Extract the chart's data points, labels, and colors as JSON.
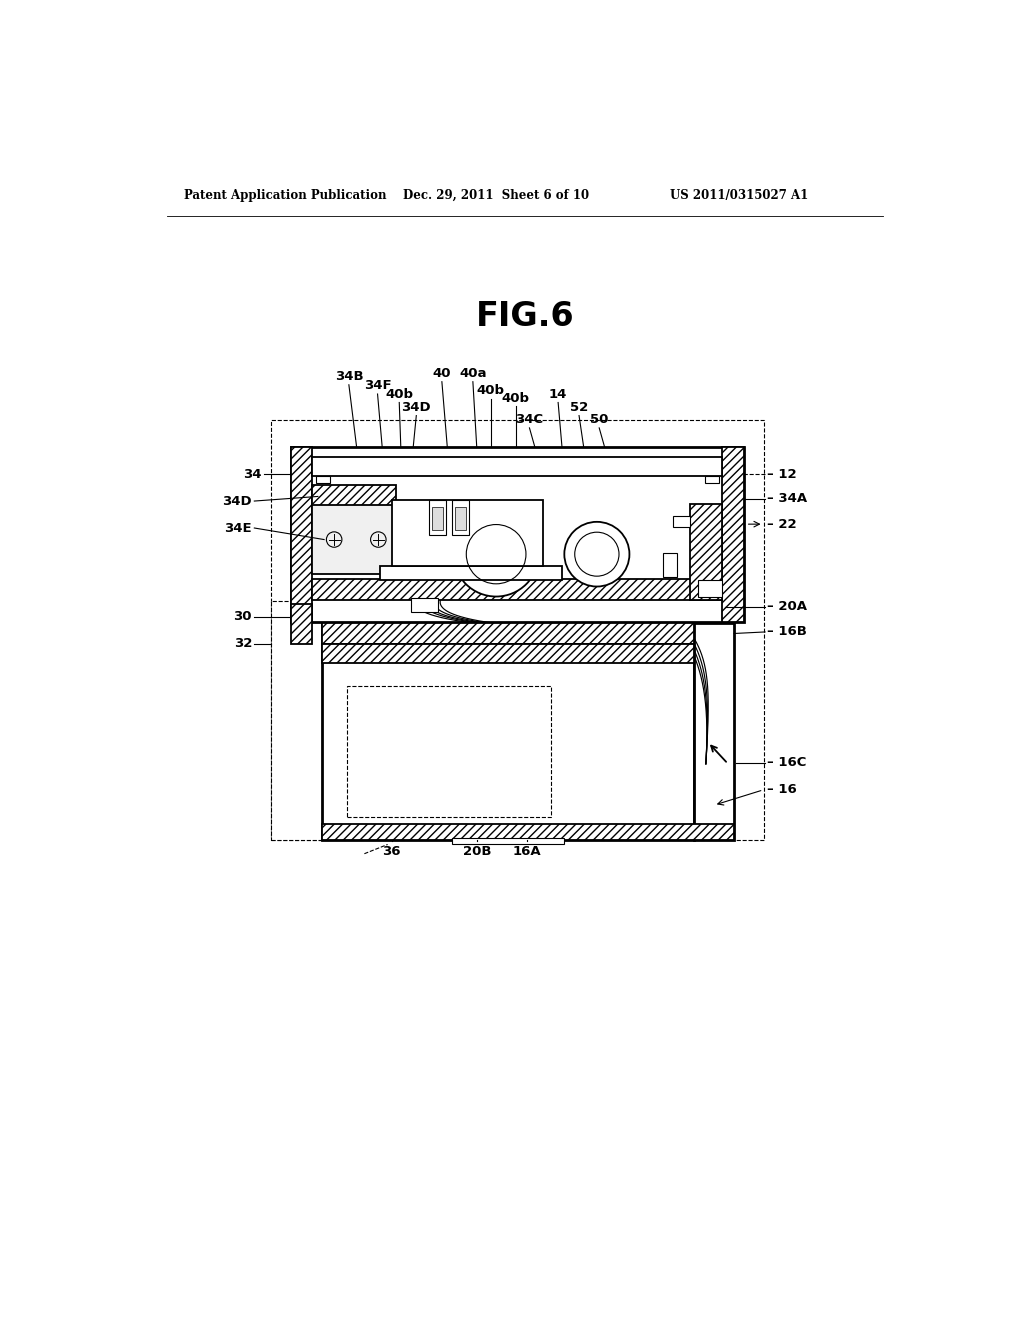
{
  "background_color": "#ffffff",
  "title": "FIG.6",
  "header_left": "Patent Application Publication",
  "header_center": "Dec. 29, 2011  Sheet 6 of 10",
  "header_right": "US 2011/0315027 A1",
  "fig_width": 10.24,
  "fig_height": 13.2
}
